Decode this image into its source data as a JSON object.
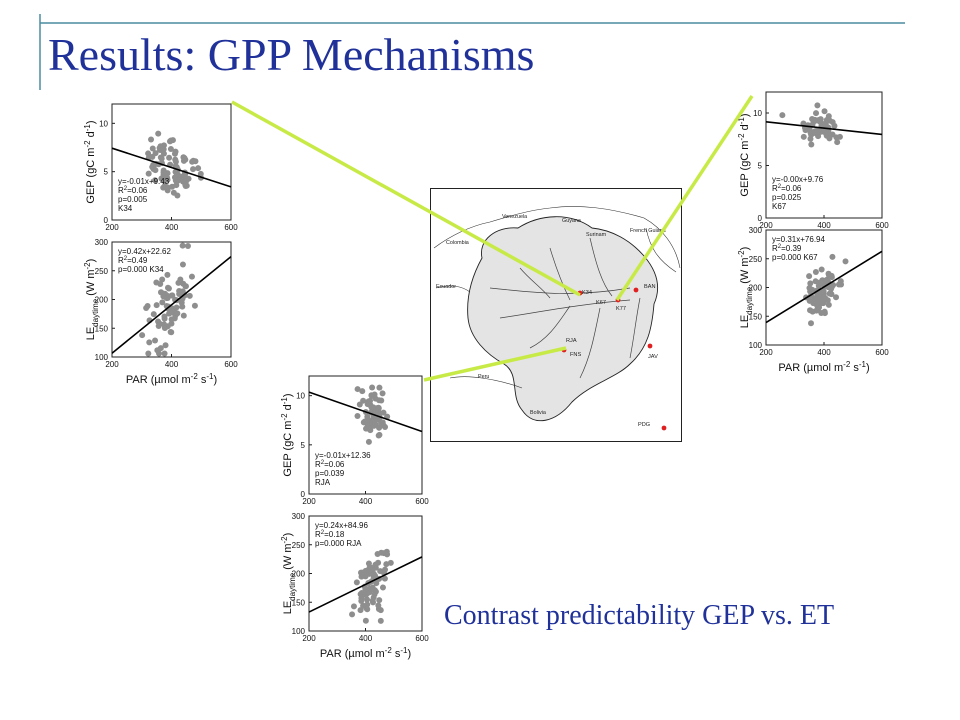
{
  "slide": {
    "title": "Results: GPP Mechanisms",
    "caption": "Contrast predictability GEP vs. ET",
    "accent": "#20329a",
    "rule_color": "#4a8ca0",
    "connector_color": "#c7ea46"
  },
  "map": {
    "land_color": "#e4e4e4",
    "site_color": "#e02020",
    "country_labels": [
      "Venezuela",
      "Guyana",
      "Surinam",
      "French Guiana",
      "Colombia",
      "Ecuador",
      "Peru",
      "Bolivia"
    ],
    "site_labels": [
      "K34",
      "K67",
      "K77",
      "BAN",
      "RJA",
      "FNS",
      "JAV",
      "PDG"
    ]
  },
  "chart_data": [
    {
      "panel": "K34-GEP",
      "type": "scatter",
      "xlabel": "",
      "ylabel": "GEP (gC m-2 d-1)",
      "xlim": [
        200,
        600
      ],
      "ylim": [
        0,
        12
      ],
      "xticks": [
        "200",
        "400",
        "600"
      ],
      "yticks": [
        "0",
        "5",
        "10"
      ],
      "fit": {
        "slope": -0.01,
        "intercept": 9.43
      },
      "stats": [
        "y=-0.01x+9.43",
        "R2=0.06",
        "p=0.005",
        "K34"
      ],
      "n": 90,
      "cx": 390,
      "sx": 70,
      "sy": 1.4
    },
    {
      "panel": "K34-LE",
      "type": "scatter",
      "xlabel": "PAR (µmol m-2 s-1)",
      "ylabel": "LE daytime (W m-2)",
      "xlim": [
        200,
        600
      ],
      "ylim": [
        100,
        300
      ],
      "xticks": [
        "200",
        "400",
        "600"
      ],
      "yticks": [
        "100",
        "150",
        "200",
        "250",
        "300"
      ],
      "fit": {
        "slope": 0.42,
        "intercept": 22.62
      },
      "stats": [
        "y=0.42x+22.62",
        "R2=0.49",
        "p=0.000 K34"
      ],
      "n": 80,
      "cx": 400,
      "sx": 60,
      "sy": 32
    },
    {
      "panel": "K67-GEP",
      "type": "scatter",
      "xlabel": "",
      "ylabel": "GEP (gC m-2 d-1)",
      "xlim": [
        200,
        600
      ],
      "ylim": [
        0,
        12
      ],
      "xticks": [
        "200",
        "400",
        "600"
      ],
      "yticks": [
        "0",
        "5",
        "10"
      ],
      "fit": {
        "slope": -0.003,
        "intercept": 9.76
      },
      "stats": [
        "y=-0.00x+9.76",
        "R2=0.06",
        "p=0.025",
        "K67"
      ],
      "n": 70,
      "cx": 390,
      "sx": 50,
      "sy": 0.7
    },
    {
      "panel": "K67-LE",
      "type": "scatter",
      "xlabel": "PAR (µmol m-2 s-1)",
      "ylabel": "LE daytime (W m-2)",
      "xlim": [
        200,
        600
      ],
      "ylim": [
        100,
        300
      ],
      "xticks": [
        "200",
        "400",
        "600"
      ],
      "yticks": [
        "100",
        "150",
        "200",
        "250",
        "300"
      ],
      "fit": {
        "slope": 0.31,
        "intercept": 76.94
      },
      "stats": [
        "y=0.31x+76.94",
        "R2=0.39",
        "p=0.000 K67"
      ],
      "n": 80,
      "cx": 400,
      "sx": 50,
      "sy": 22
    },
    {
      "panel": "RJA-GEP",
      "type": "scatter",
      "xlabel": "",
      "ylabel": "GEP (gC m-2 d-1)",
      "xlim": [
        200,
        600
      ],
      "ylim": [
        0,
        12
      ],
      "xticks": [
        "200",
        "400",
        "600"
      ],
      "yticks": [
        "0",
        "5",
        "10"
      ],
      "fit": {
        "slope": -0.01,
        "intercept": 12.36
      },
      "stats": [
        "y=-0.01x+12.36",
        "R2=0.06",
        "p=0.039",
        "RJA"
      ],
      "n": 70,
      "cx": 430,
      "sx": 40,
      "sy": 1.2
    },
    {
      "panel": "RJA-LE",
      "type": "scatter",
      "xlabel": "PAR (µmol m-2 s-1)",
      "ylabel": "LE daytime (W m-2)",
      "xlim": [
        200,
        600
      ],
      "ylim": [
        100,
        300
      ],
      "xticks": [
        "200",
        "400",
        "600"
      ],
      "yticks": [
        "100",
        "150",
        "200",
        "250",
        "300"
      ],
      "fit": {
        "slope": 0.24,
        "intercept": 84.96
      },
      "stats": [
        "y=0.24x+84.96",
        "R2=0.18",
        "p=0.000 RJA"
      ],
      "n": 70,
      "cx": 420,
      "sx": 45,
      "sy": 25
    }
  ]
}
